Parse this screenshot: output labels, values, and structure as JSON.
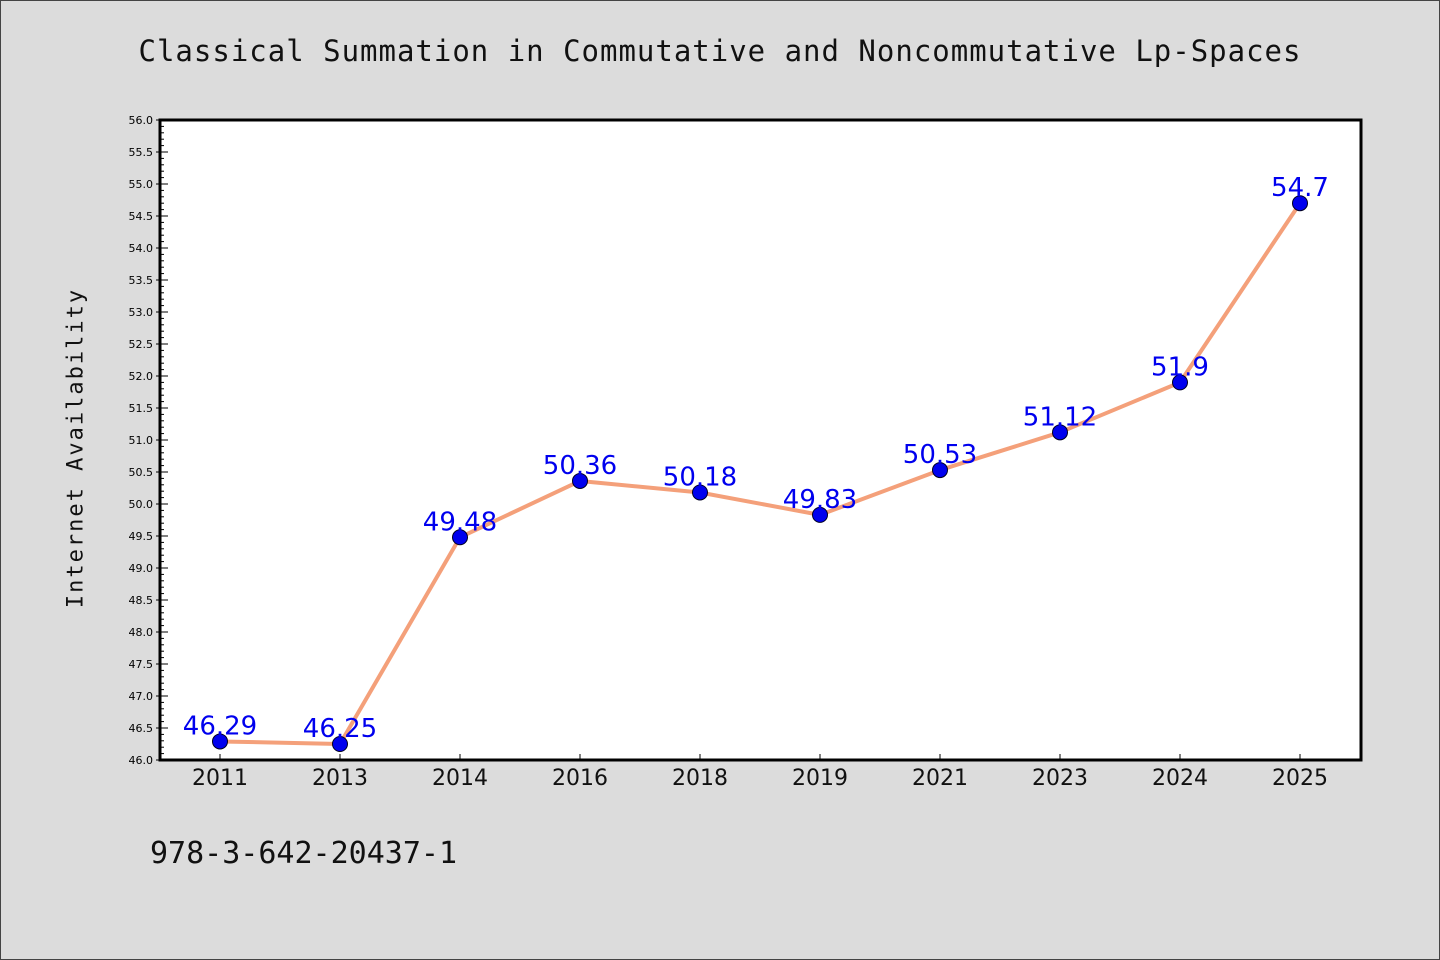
{
  "chart_data": {
    "type": "line",
    "title": "Classical Summation in Commutative and Noncommutative Lp-Spaces",
    "xlabel": "",
    "ylabel": "Internet Availability",
    "categories": [
      "2011",
      "2013",
      "2014",
      "2016",
      "2018",
      "2019",
      "2021",
      "2023",
      "2024",
      "2025"
    ],
    "series": [
      {
        "values": [
          46.29,
          46.25,
          49.48,
          50.36,
          50.18,
          49.83,
          50.53,
          51.12,
          51.9,
          54.7
        ],
        "data_labels": [
          "46.29",
          "46.25",
          "49.48",
          "50.36",
          "50.18",
          "49.83",
          "50.53",
          "51.12",
          "51.9",
          "54.7"
        ],
        "line_color": "#f4a07a",
        "marker_color": "#0000ee"
      }
    ],
    "ylim": [
      46.0,
      56.0
    ],
    "y_ticks": [
      "46.0",
      "46.5",
      "47.0",
      "47.5",
      "48.0",
      "48.5",
      "49.0",
      "49.5",
      "50.0",
      "50.5",
      "51.0",
      "51.5",
      "52.0",
      "52.5",
      "53.0",
      "53.5",
      "54.0",
      "54.5",
      "55.0",
      "55.5",
      "56.0"
    ],
    "grid": false,
    "legend": "none"
  },
  "footer": {
    "isbn": "978-3-642-20437-1"
  },
  "colors": {
    "background": "#dcdcdc",
    "plot_background": "#ffffff"
  }
}
